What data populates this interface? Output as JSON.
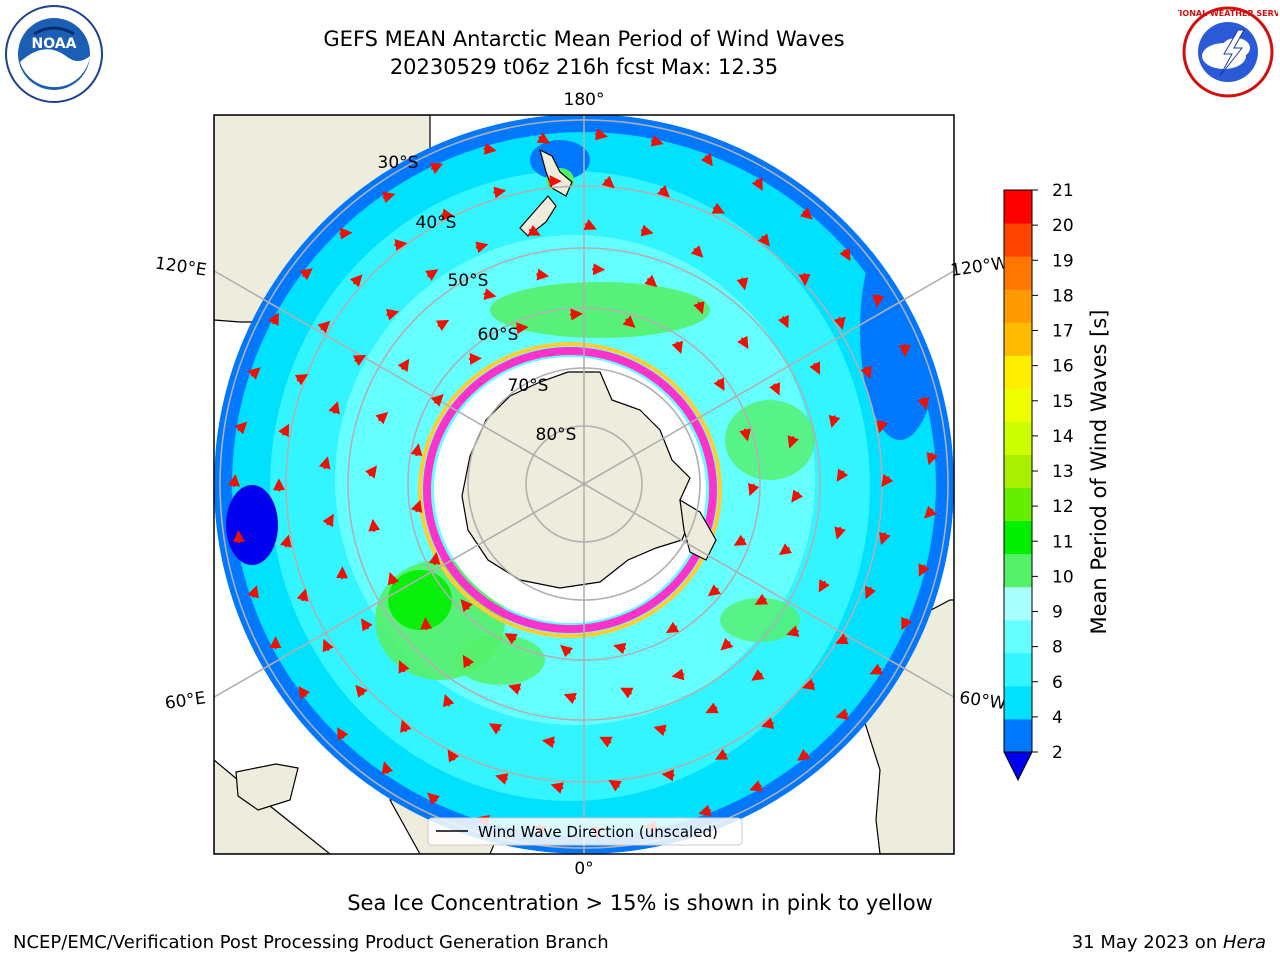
{
  "title": {
    "line1": "GEFS MEAN Antarctic Mean Period of Wind Waves",
    "line2": "20230529 t06z 216h fcst   Max: 12.35"
  },
  "map": {
    "projection": "south-polar-stereographic",
    "longitude_labels": [
      "180°",
      "120°E",
      "120°W",
      "60°E",
      "60°W",
      "0°"
    ],
    "latitude_labels": [
      "30°S",
      "40°S",
      "50°S",
      "60°S",
      "70°S",
      "80°S"
    ],
    "legend_label": "Wind Wave Direction (unscaled)",
    "colors": {
      "land": "#eeecdc",
      "ice_free_ocean_blue": "#0077ff",
      "cyan": "#00e6ff",
      "light_cyan": "#44ffff",
      "green": "#55f06a",
      "sea_ice_pink": "#ff33cc",
      "sea_ice_yellow": "#ffcc33",
      "arrow": "#ee1100",
      "grid": "#b0b0b0"
    }
  },
  "colorbar": {
    "label": "Mean Period of Wind Waves [s]",
    "ticks": [
      "2",
      "4",
      "6",
      "8",
      "9",
      "10",
      "11",
      "12",
      "13",
      "14",
      "15",
      "16",
      "17",
      "18",
      "19",
      "20",
      "21"
    ],
    "extend": "min",
    "bin_colors": [
      "#0077ff",
      "#00e0ff",
      "#33f5ff",
      "#66ffff",
      "#aaffff",
      "#55f06a",
      "#00ee00",
      "#66ee00",
      "#aaee00",
      "#ccff00",
      "#eeff00",
      "#ffee00",
      "#ffbb00",
      "#ff9900",
      "#ff7700",
      "#ff4400",
      "#ff0000"
    ],
    "under_color": "#0000ee"
  },
  "caption": "Sea Ice Concentration > 15% is shown in pink to yellow",
  "footer": {
    "left": "NCEP/EMC/Verification Post Processing Product Generation Branch",
    "date": "31 May 2023 on ",
    "system": "Hera"
  },
  "logos": {
    "left": "NOAA",
    "right": "NATIONAL WEATHER SERVICE"
  }
}
